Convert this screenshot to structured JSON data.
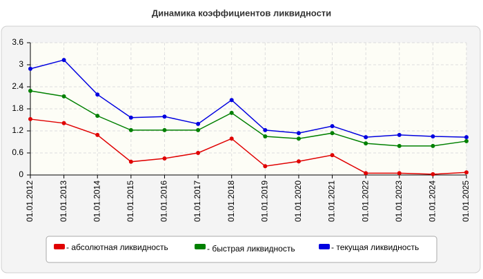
{
  "chart_data": {
    "type": "line",
    "title": "Динамика коэффициентов ликвидности",
    "categories": [
      "01.01.2012",
      "01.01.2013",
      "01.01.2014",
      "01.01.2015",
      "01.01.2016",
      "01.01.2017",
      "01.01.2018",
      "01.01.2019",
      "01.01.2020",
      "01.01.2021",
      "01.01.2022",
      "01.01.2023",
      "01.01.2024",
      "01.01.2025"
    ],
    "series": [
      {
        "name": "- абсолютная ликвидность",
        "color": "#e00000",
        "values": [
          1.52,
          1.41,
          1.09,
          0.36,
          0.45,
          0.6,
          0.99,
          0.24,
          0.37,
          0.54,
          0.05,
          0.05,
          0.02,
          0.07
        ]
      },
      {
        "name": "- быстрая ликвидность",
        "color": "#008000",
        "values": [
          2.29,
          2.14,
          1.61,
          1.22,
          1.22,
          1.22,
          1.69,
          1.05,
          0.99,
          1.14,
          0.86,
          0.79,
          0.79,
          0.92
        ]
      },
      {
        "name": "- текущая ликвидность",
        "color": "#0000e0",
        "values": [
          2.89,
          3.13,
          2.19,
          1.56,
          1.59,
          1.39,
          2.04,
          1.22,
          1.14,
          1.33,
          1.03,
          1.09,
          1.05,
          1.03
        ]
      }
    ],
    "ylim": [
      0,
      3.6
    ],
    "yticks": [
      0,
      0.6,
      1.2,
      1.8,
      2.4,
      3,
      3.6
    ],
    "grid": true
  }
}
